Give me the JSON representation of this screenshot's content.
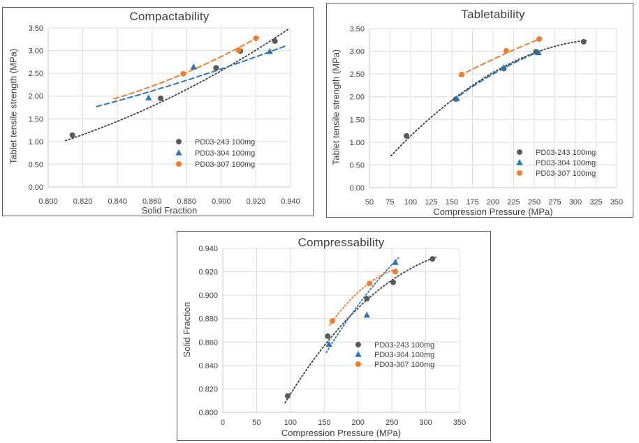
{
  "colors": {
    "series_gray": "#595959",
    "series_blue": "#2E75B6",
    "series_orange": "#ED7D31",
    "trend_black": "#404040",
    "gridline": "#DCDCDC",
    "axis_line": "#C6C6C6",
    "text": "#404040",
    "panel_border": "#595959"
  },
  "chart_data": [
    {
      "id": "compactability",
      "type": "scatter",
      "title": "Compactability",
      "xlabel": "Solid Fraction",
      "ylabel": "Tablet tensile strength (MPa)",
      "xlim": [
        0.8,
        0.94
      ],
      "ylim": [
        0.0,
        3.5
      ],
      "xticks": [
        "0.800",
        "0.820",
        "0.840",
        "0.860",
        "0.880",
        "0.900",
        "0.920",
        "0.940"
      ],
      "yticks": [
        "0.00",
        "0.50",
        "1.00",
        "1.50",
        "2.00",
        "2.50",
        "3.00",
        "3.50"
      ],
      "grid": true,
      "legend_position": "inside lower-right",
      "series": [
        {
          "name": "PD03-243 100mg",
          "marker": "circle",
          "color": "#595959",
          "points": [
            [
              0.814,
              1.14
            ],
            [
              0.865,
              1.95
            ],
            [
              0.897,
              2.62
            ],
            [
              0.911,
              2.99
            ],
            [
              0.931,
              3.21
            ]
          ],
          "trend": {
            "style": "dotted",
            "color": "#404040",
            "start": [
              0.81,
              1.02
            ],
            "mid": [
              0.875,
              2.05
            ],
            "end": [
              0.939,
              3.48
            ]
          }
        },
        {
          "name": "PD03-304 100mg",
          "marker": "triangle",
          "color": "#2E75B6",
          "points": [
            [
              0.858,
              1.96
            ],
            [
              0.884,
              2.64
            ],
            [
              0.928,
              2.98
            ]
          ],
          "trend": {
            "style": "dashed",
            "color": "#2E75B6",
            "start": [
              0.828,
              1.77
            ],
            "mid": [
              0.881,
              2.36
            ],
            "end": [
              0.937,
              3.1
            ]
          }
        },
        {
          "name": "PD03-307 100mg",
          "marker": "circle",
          "color": "#ED7D31",
          "points": [
            [
              0.878,
              2.49
            ],
            [
              0.91,
              3.01
            ],
            [
              0.92,
              3.27
            ]
          ],
          "trend": {
            "style": "dashed",
            "color": "#ED7D31",
            "start": [
              0.838,
              1.94
            ],
            "mid": [
              0.88,
              2.52
            ],
            "end": [
              0.922,
              3.31
            ]
          }
        }
      ]
    },
    {
      "id": "tabletability",
      "type": "scatter",
      "title": "Tabletability",
      "xlabel": "Compression Pressure (MPa)",
      "ylabel": "Tablet tensile strength (MPa)",
      "xlim": [
        50,
        350
      ],
      "ylim": [
        0.0,
        3.5
      ],
      "xticks": [
        "50",
        "75",
        "100",
        "125",
        "150",
        "175",
        "200",
        "225",
        "250",
        "275",
        "300",
        "325",
        "350"
      ],
      "yticks": [
        "0.00",
        "0.50",
        "1.00",
        "1.50",
        "2.00",
        "2.50",
        "3.00",
        "3.50"
      ],
      "grid": true,
      "legend_position": "inside lower-right",
      "series": [
        {
          "name": "PD03-243 100mg",
          "marker": "circle",
          "color": "#595959",
          "points": [
            [
              95,
              1.14
            ],
            [
              155,
              1.95
            ],
            [
              213,
              2.62
            ],
            [
              252,
              2.99
            ],
            [
              310,
              3.21
            ]
          ],
          "trend": {
            "style": "dotted",
            "color": "#404040",
            "start": [
              76,
              0.7
            ],
            "mid": [
              196,
              2.49
            ],
            "end": [
              313,
              3.24
            ]
          }
        },
        {
          "name": "PD03-304 100mg",
          "marker": "triangle",
          "color": "#2E75B6",
          "points": [
            [
              156,
              1.96
            ],
            [
              213,
              2.64
            ],
            [
              255,
              2.97
            ]
          ],
          "trend": {
            "style": "dashed",
            "color": "#2E75B6",
            "start": [
              151,
              1.92
            ],
            "mid": [
              203,
              2.53
            ],
            "end": [
              259,
              3.02
            ]
          }
        },
        {
          "name": "PD03-307 100mg",
          "marker": "circle",
          "color": "#ED7D31",
          "points": [
            [
              162,
              2.49
            ],
            [
              216,
              3.01
            ],
            [
              256,
              3.27
            ]
          ],
          "trend": {
            "style": "dashed",
            "color": "#ED7D31",
            "start": [
              159,
              2.46
            ],
            "mid": [
              209,
              2.9
            ],
            "end": [
              259,
              3.29
            ]
          }
        }
      ]
    },
    {
      "id": "compressability",
      "type": "scatter",
      "title": "Compressability",
      "xlabel": "Compression Pressure (MPa)",
      "ylabel": "Solid Fraction",
      "xlim": [
        0,
        350
      ],
      "ylim": [
        0.8,
        0.94
      ],
      "xticks": [
        "0",
        "50",
        "100",
        "150",
        "200",
        "250",
        "300",
        "350"
      ],
      "yticks": [
        "0.800",
        "0.820",
        "0.840",
        "0.860",
        "0.880",
        "0.900",
        "0.920",
        "0.940"
      ],
      "grid": true,
      "legend_position": "inside middle-right",
      "series": [
        {
          "name": "PD03-243 100mg",
          "marker": "circle",
          "color": "#595959",
          "points": [
            [
              96,
              0.814
            ],
            [
              155,
              0.865
            ],
            [
              213,
              0.897
            ],
            [
              252,
              0.911
            ],
            [
              310,
              0.931
            ]
          ],
          "trend": {
            "style": "dotted",
            "color": "#404040",
            "start": [
              92,
              0.808
            ],
            "mid": [
              200,
              0.889
            ],
            "end": [
              315,
              0.9325
            ]
          }
        },
        {
          "name": "PD03-304 100mg",
          "marker": "triangle",
          "color": "#2E75B6",
          "points": [
            [
              157,
              0.858
            ],
            [
              213,
              0.883
            ],
            [
              255,
              0.928
            ]
          ],
          "trend": {
            "style": "dotted",
            "color": "#2E75B6",
            "start": [
              153,
              0.851
            ],
            "mid": [
              206,
              0.896
            ],
            "end": [
              260,
              0.932
            ]
          }
        },
        {
          "name": "PD03-307 100mg",
          "marker": "circle",
          "color": "#ED7D31",
          "points": [
            [
              162,
              0.878
            ],
            [
              217,
              0.91
            ],
            [
              255,
              0.92
            ]
          ],
          "trend": {
            "style": "dotted",
            "color": "#ED7D31",
            "start": [
              158,
              0.8745
            ],
            "mid": [
              208,
              0.9065
            ],
            "end": [
              258,
              0.9225
            ]
          }
        }
      ]
    }
  ]
}
